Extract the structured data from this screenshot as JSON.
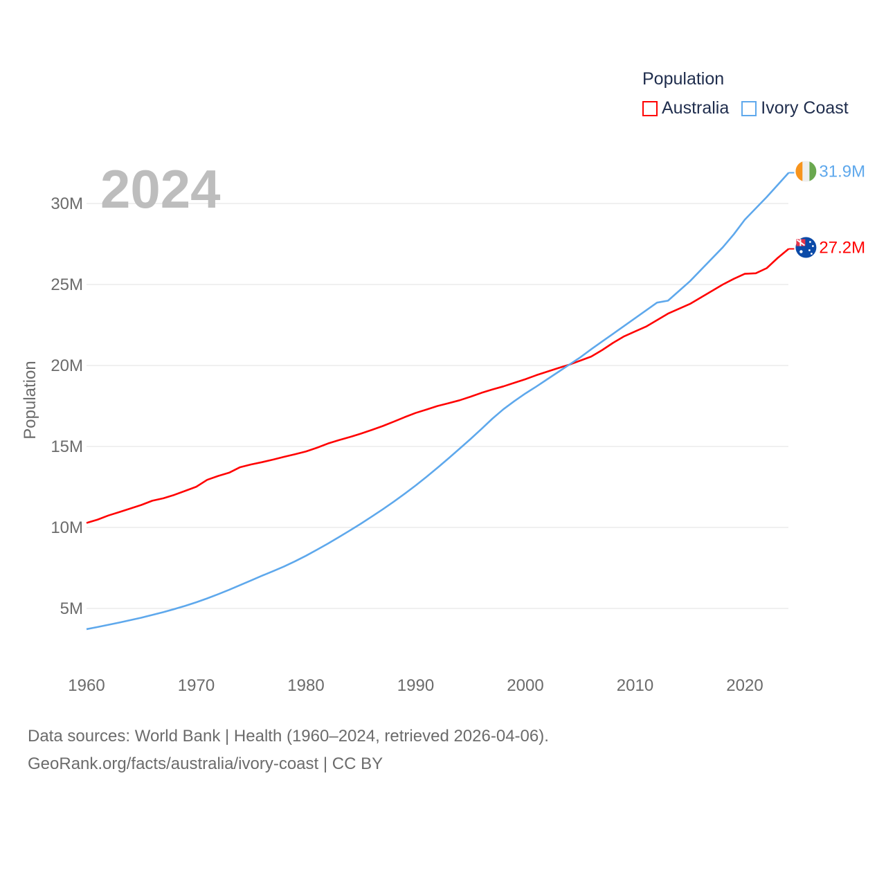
{
  "chart_data": {
    "type": "line",
    "title": "Population",
    "year_label": "2024",
    "xlabel": "",
    "ylabel": "Population",
    "xlim": [
      1960,
      2024
    ],
    "ylim": [
      0,
      33000000
    ],
    "x_ticks": [
      1960,
      1970,
      1980,
      1990,
      2000,
      2010,
      2020
    ],
    "x_tick_labels": [
      "1960",
      "1970",
      "1980",
      "1990",
      "2000",
      "2010",
      "2020"
    ],
    "y_ticks": [
      5000000,
      10000000,
      15000000,
      20000000,
      25000000,
      30000000
    ],
    "y_tick_labels": [
      "5M",
      "10M",
      "15M",
      "20M",
      "25M",
      "30M"
    ],
    "grid": true,
    "legend_placement": "top-right",
    "x_start": 1960,
    "series": [
      {
        "name": "Australia",
        "color": "#ff0000",
        "end_label": "27.2M",
        "flag": "australia-flag",
        "values_millions": [
          10.28,
          10.48,
          10.74,
          10.95,
          11.17,
          11.39,
          11.65,
          11.8,
          12.01,
          12.26,
          12.51,
          12.94,
          13.18,
          13.38,
          13.72,
          13.89,
          14.03,
          14.19,
          14.36,
          14.52,
          14.69,
          14.92,
          15.18,
          15.39,
          15.58,
          15.79,
          16.02,
          16.26,
          16.53,
          16.81,
          17.07,
          17.28,
          17.5,
          17.67,
          17.85,
          18.07,
          18.31,
          18.52,
          18.71,
          18.93,
          19.15,
          19.4,
          19.62,
          19.84,
          20.05,
          20.3,
          20.55,
          20.95,
          21.4,
          21.8,
          22.1,
          22.4,
          22.8,
          23.2,
          23.5,
          23.8,
          24.2,
          24.6,
          25.0,
          25.35,
          25.66,
          25.69,
          26.01,
          26.64,
          27.2
        ]
      },
      {
        "name": "Ivory Coast",
        "color": "#5ea8ec",
        "end_label": "31.9M",
        "flag": "ivory-coast-flag",
        "values_millions": [
          3.72,
          3.85,
          3.99,
          4.13,
          4.28,
          4.43,
          4.6,
          4.77,
          4.96,
          5.16,
          5.38,
          5.62,
          5.88,
          6.15,
          6.44,
          6.73,
          7.02,
          7.3,
          7.59,
          7.91,
          8.25,
          8.62,
          9.0,
          9.4,
          9.81,
          10.23,
          10.67,
          11.12,
          11.59,
          12.08,
          12.59,
          13.13,
          13.69,
          14.27,
          14.86,
          15.46,
          16.08,
          16.72,
          17.3,
          17.8,
          18.27,
          18.7,
          19.15,
          19.6,
          20.05,
          20.5,
          21.0,
          21.48,
          21.96,
          22.44,
          22.92,
          23.4,
          23.88,
          24.0,
          24.6,
          25.2,
          25.9,
          26.6,
          27.3,
          28.1,
          29.0,
          29.7,
          30.4,
          31.15,
          31.9
        ]
      }
    ]
  },
  "footer": {
    "sources": "Data sources: World Bank | Health (1960–2024, retrieved 2026-04-06).",
    "attribution": "GeoRank.org/facts/australia/ivory-coast | CC BY"
  }
}
